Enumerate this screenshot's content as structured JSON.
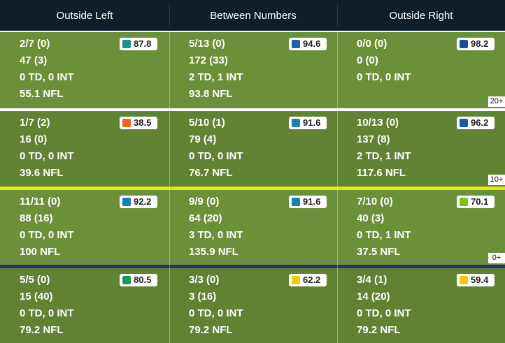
{
  "header": {
    "columns": [
      "Outside Left",
      "Between Numbers",
      "Outside Right"
    ]
  },
  "rows": [
    {
      "label": "20+",
      "cells": [
        {
          "lines": [
            "2/7 (0)",
            "47 (3)",
            "0 TD, 0 INT",
            "55.1 NFL"
          ],
          "grade": 87.8,
          "grade_color": "#13968a"
        },
        {
          "lines": [
            "5/13 (0)",
            "172 (33)",
            "2 TD, 1 INT",
            "93.8 NFL"
          ],
          "grade": 94.6,
          "grade_color": "#1a66a8"
        },
        {
          "lines": [
            "0/0 (0)",
            "0 (0)",
            "0 TD, 0 INT"
          ],
          "grade": 98.2,
          "grade_color": "#1f4aa0"
        }
      ]
    },
    {
      "label": "10+",
      "cells": [
        {
          "lines": [
            "1/7 (2)",
            "16 (0)",
            "0 TD, 0 INT",
            "39.6 NFL"
          ],
          "grade": 38.5,
          "grade_color": "#f2621c"
        },
        {
          "lines": [
            "5/10 (1)",
            "79 (4)",
            "0 TD, 0 INT",
            "76.7 NFL"
          ],
          "grade": 91.6,
          "grade_color": "#1a80b0"
        },
        {
          "lines": [
            "10/13 (0)",
            "137 (8)",
            "2 TD, 1 INT",
            "117.6 NFL"
          ],
          "grade": 96.2,
          "grade_color": "#1f5aa8"
        }
      ]
    },
    {
      "label": "0+",
      "cells": [
        {
          "lines": [
            "11/11 (0)",
            "88 (16)",
            "0 TD, 0 INT",
            "100 NFL"
          ],
          "grade": 92.2,
          "grade_color": "#1a7cb0"
        },
        {
          "lines": [
            "9/9 (0)",
            "64 (20)",
            "3 TD, 0 INT",
            "135.9 NFL"
          ],
          "grade": 91.6,
          "grade_color": "#1a80b0"
        },
        {
          "lines": [
            "7/10 (0)",
            "40 (3)",
            "0 TD, 1 INT",
            "37.5 NFL"
          ],
          "grade": 70.1,
          "grade_color": "#7cc320"
        }
      ]
    },
    {
      "cells": [
        {
          "lines": [
            "5/5 (0)",
            "15 (40)",
            "0 TD, 0 INT",
            "79.2 NFL"
          ],
          "grade": 80.5,
          "grade_color": "#159a52"
        },
        {
          "lines": [
            "3/3 (0)",
            "3 (16)",
            "0 TD, 0 INT",
            "79.2 NFL"
          ],
          "grade": 62.2,
          "grade_color": "#f0cb10"
        },
        {
          "lines": [
            "3/4 (1)",
            "14 (20)",
            "0 TD, 0 INT",
            "79.2 NFL"
          ],
          "grade": 59.4,
          "grade_color": "#f6c512"
        }
      ]
    }
  ]
}
